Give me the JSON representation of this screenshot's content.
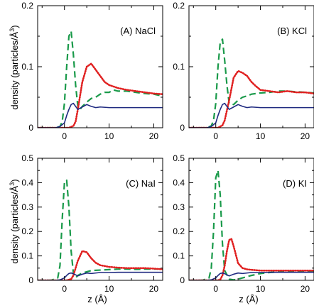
{
  "figure": {
    "ylabel": "density (particles/Å³)",
    "xlabel": "z (Å)",
    "ylabel_main": "density (particles/Å",
    "ylabel_sup": "3",
    "ylabel_close": ")",
    "xlabel_main": "z (Å)"
  },
  "colors": {
    "cation": "#1a9a4a",
    "anion": "#e02020",
    "water": "#1f2a80",
    "axis": "#000000"
  },
  "chart_data": [
    {
      "type": "line",
      "panel": "(A) NaCl",
      "xlim": [
        -6,
        22
      ],
      "ylim": [
        0,
        0.2
      ],
      "xticks": [
        0,
        10,
        20
      ],
      "yticks": [
        0,
        0.1,
        0.2
      ],
      "ytick_labels": [
        "0",
        "0.1",
        "0.2"
      ],
      "series": [
        {
          "key": "cation",
          "style": "dashed",
          "x": [
            -6,
            -2,
            -1,
            -0.5,
            0,
            0.5,
            1,
            1.5,
            2,
            2.5,
            3,
            3.5,
            4,
            5,
            6,
            7,
            8,
            9,
            10,
            11,
            12,
            14,
            16,
            18,
            20,
            22
          ],
          "y": [
            0,
            0,
            0.002,
            0.01,
            0.04,
            0.1,
            0.15,
            0.158,
            0.12,
            0.07,
            0.035,
            0.03,
            0.035,
            0.042,
            0.048,
            0.05,
            0.055,
            0.058,
            0.058,
            0.062,
            0.06,
            0.06,
            0.058,
            0.056,
            0.055,
            0.052
          ]
        },
        {
          "key": "anion",
          "style": "dotted",
          "x": [
            -6,
            1,
            2,
            2.5,
            3,
            4,
            5,
            6,
            7,
            8,
            9,
            10,
            12,
            14,
            16,
            18,
            20,
            22
          ],
          "y": [
            0,
            0,
            0.003,
            0.01,
            0.03,
            0.075,
            0.1,
            0.105,
            0.095,
            0.085,
            0.075,
            0.07,
            0.065,
            0.062,
            0.06,
            0.058,
            0.056,
            0.055
          ]
        },
        {
          "key": "water",
          "style": "solid",
          "x": [
            -6,
            -2,
            -1,
            0,
            0.5,
            1,
            1.5,
            2,
            3,
            4,
            5,
            6,
            7,
            8,
            10,
            12,
            16,
            20,
            22
          ],
          "y": [
            0,
            0,
            0.002,
            0.008,
            0.02,
            0.03,
            0.038,
            0.04,
            0.03,
            0.034,
            0.038,
            0.035,
            0.033,
            0.034,
            0.033,
            0.033,
            0.033,
            0.033,
            0.033
          ]
        }
      ]
    },
    {
      "type": "line",
      "panel": "(B) KCl",
      "xlim": [
        -6,
        22
      ],
      "ylim": [
        0,
        0.2
      ],
      "xticks": [
        0,
        10,
        20
      ],
      "yticks": [
        0,
        0.1,
        0.2
      ],
      "ytick_labels": [
        "0",
        "0.1",
        "0.2"
      ],
      "series": [
        {
          "key": "cation",
          "style": "dashed",
          "x": [
            -6,
            -2,
            -1,
            -0.5,
            0,
            0.5,
            1,
            1.5,
            2,
            2.5,
            3,
            4,
            5,
            6,
            7,
            8,
            10,
            12,
            14,
            16,
            18,
            20,
            22
          ],
          "y": [
            0,
            0,
            0.003,
            0.012,
            0.04,
            0.1,
            0.14,
            0.145,
            0.11,
            0.07,
            0.04,
            0.038,
            0.045,
            0.05,
            0.052,
            0.055,
            0.057,
            0.058,
            0.06,
            0.06,
            0.059,
            0.058,
            0.057
          ]
        },
        {
          "key": "anion",
          "style": "dotted",
          "x": [
            -6,
            0.5,
            1.5,
            2,
            3,
            4,
            5,
            6,
            7,
            8,
            9,
            10,
            12,
            14,
            16,
            18,
            20,
            22
          ],
          "y": [
            0,
            0,
            0.004,
            0.012,
            0.045,
            0.082,
            0.093,
            0.09,
            0.085,
            0.075,
            0.068,
            0.062,
            0.06,
            0.058,
            0.06,
            0.058,
            0.058,
            0.056
          ]
        },
        {
          "key": "water",
          "style": "solid",
          "x": [
            -6,
            -2,
            -1,
            0,
            0.5,
            1,
            1.5,
            2,
            3,
            4,
            5,
            6,
            7,
            8,
            10,
            12,
            16,
            20,
            22
          ],
          "y": [
            0,
            0,
            0.002,
            0.008,
            0.02,
            0.03,
            0.038,
            0.04,
            0.03,
            0.034,
            0.038,
            0.035,
            0.033,
            0.034,
            0.033,
            0.033,
            0.033,
            0.033,
            0.033
          ]
        }
      ]
    },
    {
      "type": "line",
      "panel": "(C) NaI",
      "xlim": [
        -6,
        22
      ],
      "ylim": [
        0,
        0.5
      ],
      "xticks": [
        0,
        10,
        20
      ],
      "yticks": [
        0,
        0.1,
        0.2,
        0.3,
        0.4,
        0.5
      ],
      "ytick_labels": [
        "0",
        "0.1",
        "0.2",
        "0.3",
        "0.4",
        "0.5"
      ],
      "series": [
        {
          "key": "cation",
          "style": "dashed",
          "x": [
            -6,
            -3,
            -1.5,
            -1,
            -0.5,
            0,
            0.5,
            1,
            1.5,
            2,
            2.5,
            3,
            4,
            5,
            6,
            8,
            10,
            12,
            14,
            16,
            18,
            20,
            22
          ],
          "y": [
            0,
            0,
            0.01,
            0.06,
            0.25,
            0.4,
            0.41,
            0.3,
            0.12,
            0.03,
            0.01,
            0.02,
            0.03,
            0.035,
            0.04,
            0.042,
            0.044,
            0.046,
            0.046,
            0.045,
            0.046,
            0.046,
            0.047
          ]
        },
        {
          "key": "anion",
          "style": "dotted",
          "x": [
            -6,
            0.5,
            1.5,
            2,
            3,
            4,
            5,
            6,
            7,
            8,
            10,
            12,
            14,
            16,
            18,
            20,
            22
          ],
          "y": [
            0,
            0,
            0.005,
            0.02,
            0.08,
            0.12,
            0.115,
            0.09,
            0.072,
            0.062,
            0.055,
            0.052,
            0.05,
            0.05,
            0.05,
            0.048,
            0.045
          ]
        },
        {
          "key": "water",
          "style": "solid",
          "x": [
            -6,
            -2,
            -1,
            0,
            0.5,
            1,
            1.5,
            2,
            3,
            4,
            5,
            6,
            8,
            10,
            12,
            16,
            20,
            22
          ],
          "y": [
            0,
            0,
            0.002,
            0.01,
            0.02,
            0.028,
            0.03,
            0.027,
            0.018,
            0.025,
            0.03,
            0.028,
            0.032,
            0.032,
            0.033,
            0.033,
            0.033,
            0.033
          ]
        }
      ]
    },
    {
      "type": "line",
      "panel": "(D) KI",
      "xlim": [
        -6,
        22
      ],
      "ylim": [
        0,
        0.5
      ],
      "xticks": [
        0,
        10,
        20
      ],
      "yticks": [
        0,
        0.1,
        0.2,
        0.3,
        0.4,
        0.5
      ],
      "ytick_labels": [
        "0",
        "0.1",
        "0.2",
        "0.3",
        "0.4",
        "0.5"
      ],
      "series": [
        {
          "key": "cation",
          "style": "dashed",
          "x": [
            -6,
            -3,
            -1.5,
            -1,
            -0.5,
            0,
            0.5,
            1,
            1.5,
            2,
            3,
            4,
            5,
            6,
            8,
            10,
            12,
            14,
            16,
            18,
            20,
            22
          ],
          "y": [
            0,
            0,
            0.01,
            0.05,
            0.2,
            0.42,
            0.45,
            0.35,
            0.15,
            0.04,
            0.005,
            0.002,
            0.005,
            0.01,
            0.02,
            0.028,
            0.032,
            0.034,
            0.035,
            0.036,
            0.037,
            0.038
          ]
        },
        {
          "key": "anion",
          "style": "dotted",
          "x": [
            -6,
            0.5,
            1,
            1.5,
            2,
            2.5,
            3,
            3.5,
            4,
            5,
            6,
            7,
            8,
            10,
            12,
            14,
            16,
            18,
            20,
            22
          ],
          "y": [
            0,
            0,
            0.003,
            0.02,
            0.06,
            0.12,
            0.165,
            0.17,
            0.14,
            0.07,
            0.05,
            0.045,
            0.043,
            0.04,
            0.04,
            0.04,
            0.04,
            0.04,
            0.04,
            0.04
          ]
        },
        {
          "key": "water",
          "style": "solid",
          "x": [
            -6,
            -2,
            -1,
            0,
            0.5,
            1,
            1.5,
            2,
            3,
            4,
            5,
            6,
            8,
            10,
            12,
            16,
            20,
            22
          ],
          "y": [
            0,
            0,
            0.002,
            0.01,
            0.02,
            0.028,
            0.03,
            0.027,
            0.018,
            0.025,
            0.03,
            0.028,
            0.032,
            0.032,
            0.033,
            0.033,
            0.033,
            0.033
          ]
        }
      ]
    }
  ]
}
